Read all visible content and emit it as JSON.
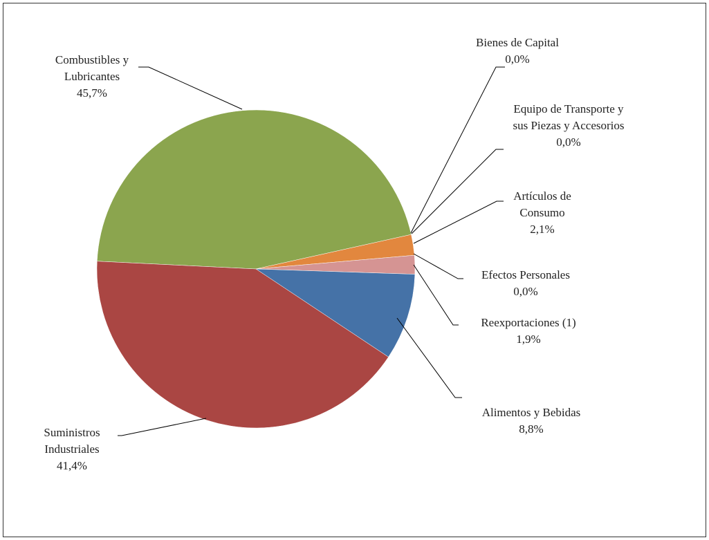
{
  "chart_data": {
    "type": "pie",
    "categories": [
      "Combustibles y Lubricantes",
      "Bienes de Capital",
      "Equipo de Transporte y sus Piezas y Accesorios",
      "Artículos de Consumo",
      "Efectos Personales",
      "Reexportaciones  (1)",
      "Alimentos y Bebidas",
      "Suministros Industriales"
    ],
    "values": [
      45.7,
      0.0,
      0.0,
      2.1,
      0.0,
      1.9,
      8.8,
      41.4
    ],
    "value_labels": [
      "45,7%",
      "0,0%",
      "0,0%",
      "2,1%",
      "0,0%",
      "1,9%",
      "8,8%",
      "41,4%"
    ],
    "colors": [
      "#8ba54e",
      "#4572a7",
      "#aa4643",
      "#e2873e",
      "#80699b",
      "#d59493",
      "#4572a7",
      "#aa4643"
    ]
  }
}
